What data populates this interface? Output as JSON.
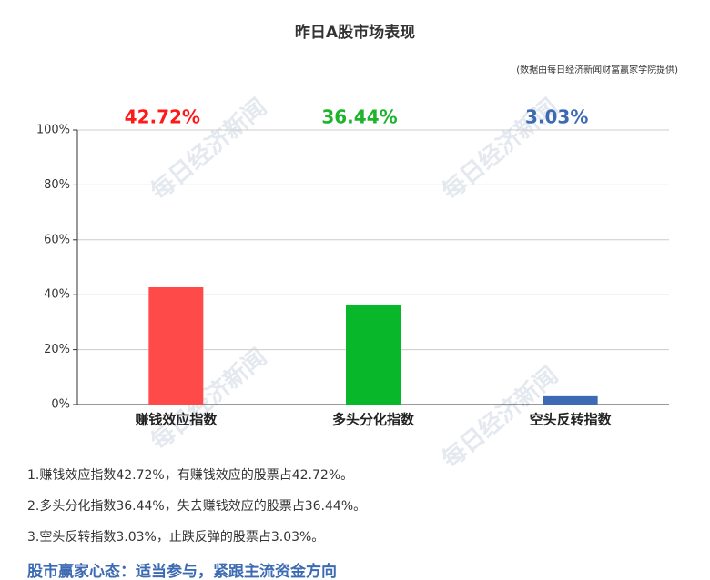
{
  "chart_data": {
    "type": "bar",
    "title": "昨日A股市场表现",
    "subtitle": "(数据由每日经济新闻财富赢家学院提供)",
    "categories": [
      "赚钱效应指数",
      "多头分化指数",
      "空头反转指数"
    ],
    "values": [
      42.72,
      36.44,
      3.03
    ],
    "value_labels": [
      "42.72%",
      "36.44%",
      "3.03%"
    ],
    "colors": [
      "#ff4a4a",
      "#08b82a",
      "#3d6bb3"
    ],
    "label_colors": [
      "#ff1a1a",
      "#1db32b",
      "#3d6bb3"
    ],
    "ylim": [
      0,
      100
    ],
    "yticks": [
      {
        "value": 0,
        "label": "0%"
      },
      {
        "value": 20,
        "label": "20%"
      },
      {
        "value": 40,
        "label": "40%"
      },
      {
        "value": 60,
        "label": "60%"
      },
      {
        "value": 80,
        "label": "80%"
      },
      {
        "value": 100,
        "label": "100%"
      }
    ],
    "grid": true
  },
  "watermark": "每日经济新闻",
  "notes": [
    "1.赚钱效应指数42.72%，有赚钱效应的股票占42.72%。",
    "2.多头分化指数36.44%，失去赚钱效应的股票占36.44%。",
    "3.空头反转指数3.03%，止跌反弹的股票占3.03%。"
  ],
  "headline": "股市赢家心态：适当参与，紧跟主流资金方向"
}
